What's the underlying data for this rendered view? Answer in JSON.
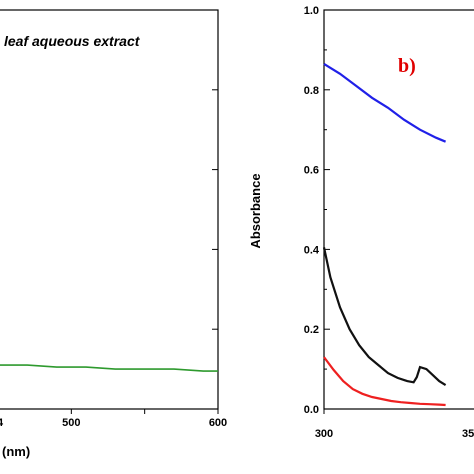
{
  "chart_data": [
    {
      "type": "line",
      "panel": "a",
      "annotation": "leaf aqueous extract",
      "xlabel_visible": "(nm)",
      "xlim": [
        450,
        600
      ],
      "ylim": [
        0,
        1.0
      ],
      "x_ticks": [
        500,
        550,
        600
      ],
      "x_tick_labels": [
        "500",
        "",
        "600"
      ],
      "partial_tick_label": "4",
      "series": [
        {
          "color": "#2e9a2e",
          "x": [
            450,
            470,
            490,
            510,
            530,
            550,
            570,
            590,
            600
          ],
          "y": [
            0.11,
            0.11,
            0.105,
            0.105,
            0.1,
            0.1,
            0.1,
            0.095,
            0.095
          ]
        }
      ]
    },
    {
      "type": "line",
      "panel": "b",
      "panel_label": "b)",
      "ylabel": "Absorbance",
      "xlim": [
        300,
        350
      ],
      "ylim": [
        0,
        1.0
      ],
      "y_ticks": [
        0.0,
        0.2,
        0.4,
        0.6,
        0.8,
        1.0
      ],
      "y_tick_labels": [
        "0.0",
        "0.2",
        "0.4",
        "0.6",
        "0.8",
        "1.0"
      ],
      "x_tick_labels": [
        "300"
      ],
      "partial_tick_label": "35",
      "series": [
        {
          "color": "#2020e8",
          "x": [
            300,
            305,
            310,
            315,
            320,
            325,
            330,
            335,
            338
          ],
          "y": [
            0.865,
            0.84,
            0.81,
            0.78,
            0.755,
            0.725,
            0.7,
            0.68,
            0.67
          ]
        },
        {
          "color": "#111111",
          "x": [
            300,
            302,
            305,
            308,
            311,
            314,
            317,
            320,
            323,
            326,
            328,
            329,
            330,
            332,
            334,
            336,
            338
          ],
          "y": [
            0.405,
            0.33,
            0.255,
            0.2,
            0.16,
            0.13,
            0.11,
            0.09,
            0.078,
            0.07,
            0.067,
            0.08,
            0.105,
            0.1,
            0.085,
            0.07,
            0.06
          ]
        },
        {
          "color": "#ee2020",
          "x": [
            300,
            303,
            306,
            309,
            312,
            315,
            318,
            321,
            324,
            327,
            330,
            333,
            336,
            338
          ],
          "y": [
            0.13,
            0.098,
            0.07,
            0.05,
            0.038,
            0.03,
            0.025,
            0.02,
            0.017,
            0.015,
            0.013,
            0.012,
            0.011,
            0.01
          ]
        }
      ]
    }
  ]
}
